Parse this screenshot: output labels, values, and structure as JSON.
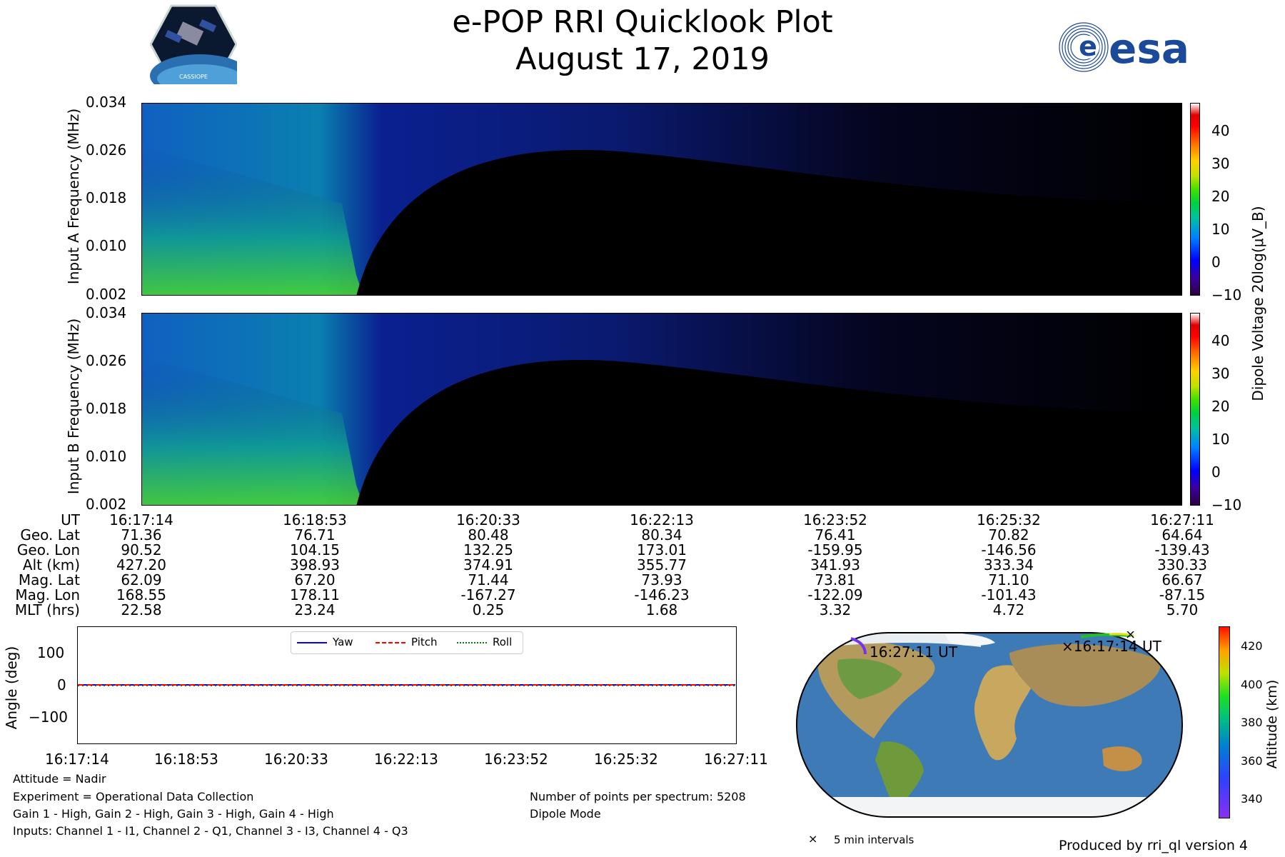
{
  "header": {
    "title_line1": "e-POP RRI Quicklook Plot",
    "title_line2": "August 17, 2019",
    "logo_left_text": "CASSIOPE",
    "logo_right_text": "esa"
  },
  "spectrogram": {
    "panel_a": {
      "ylabel": "Input A Frequency (MHz)"
    },
    "panel_b": {
      "ylabel": "Input B Frequency (MHz)"
    },
    "yticks": [
      "0.034",
      "0.026",
      "0.018",
      "0.010",
      "0.002"
    ],
    "colorbar_ticks": [
      "40",
      "30",
      "20",
      "10",
      "0",
      "−10"
    ],
    "colorbar_label": "Dipole Voltage 20log(μV_B)"
  },
  "ephemeris": {
    "labels": [
      "UT",
      "Geo. Lat",
      "Geo. Lon",
      "Alt (km)",
      "Mag. Lat",
      "Mag. Lon",
      "MLT (hrs)"
    ],
    "columns": [
      [
        "16:17:14",
        "71.36",
        "90.52",
        "427.20",
        "62.09",
        "168.55",
        "22.58"
      ],
      [
        "16:18:53",
        "76.71",
        "104.15",
        "398.93",
        "67.20",
        "178.11",
        "23.24"
      ],
      [
        "16:20:33",
        "80.48",
        "132.25",
        "374.91",
        "71.44",
        "-167.27",
        "0.25"
      ],
      [
        "16:22:13",
        "80.34",
        "173.01",
        "355.77",
        "73.93",
        "-146.23",
        "1.68"
      ],
      [
        "16:23:52",
        "76.41",
        "-159.95",
        "341.93",
        "73.81",
        "-122.09",
        "3.32"
      ],
      [
        "16:25:32",
        "70.82",
        "-146.56",
        "333.34",
        "71.10",
        "-101.43",
        "4.72"
      ],
      [
        "16:27:11",
        "64.64",
        "-139.43",
        "330.33",
        "66.67",
        "-87.15",
        "5.70"
      ]
    ]
  },
  "attitude": {
    "ylabel": "Angle (deg)",
    "yticks": [
      "100",
      "0",
      "−100"
    ],
    "xticks": [
      "16:17:14",
      "16:18:53",
      "16:20:33",
      "16:22:13",
      "16:23:52",
      "16:25:32",
      "16:27:11"
    ],
    "legend": {
      "yaw": "Yaw",
      "pitch": "Pitch",
      "roll": "Roll"
    }
  },
  "info": {
    "attitude_mode": "Attitude = Nadir",
    "experiment": "Experiment = Operational Data Collection",
    "gains": "Gain 1 - High, Gain 2 - High, Gain 3 - High, Gain 4 - High",
    "inputs": "Inputs: Channel 1 - I1, Channel 2 - Q1, Channel 3 - I3, Channel 4 - Q3",
    "points": "Number of points per spectrum: 5208",
    "mode": "Dipole Mode"
  },
  "map": {
    "end_label": "16:27:11 UT",
    "start_label": "×16:17:14 UT",
    "interval_marker": "×",
    "interval_label": "5 min intervals",
    "colorbar_label": "Altitude (km)",
    "colorbar_ticks": [
      "420",
      "400",
      "380",
      "360",
      "340"
    ]
  },
  "footer": {
    "produced_by": "Produced by rri_ql version 4"
  },
  "chart_data": [
    {
      "type": "heatmap",
      "title": "e-POP RRI Quicklook Plot",
      "ylabel": "Input A Frequency (MHz)",
      "ylim": [
        0.002,
        0.034
      ],
      "yticks": [
        0.002,
        0.01,
        0.018,
        0.026,
        0.034
      ],
      "xlabel": "UT",
      "xticks": [
        "16:17:14",
        "16:18:53",
        "16:20:33",
        "16:22:13",
        "16:23:52",
        "16:25:32",
        "16:27:11"
      ],
      "colorbar": {
        "label": "Dipole Voltage 20log(μV_B)",
        "range": [
          -10,
          48
        ],
        "ticks": [
          -10,
          0,
          10,
          20,
          30,
          40
        ]
      }
    },
    {
      "type": "heatmap",
      "ylabel": "Input B Frequency (MHz)",
      "ylim": [
        0.002,
        0.034
      ],
      "yticks": [
        0.002,
        0.01,
        0.018,
        0.026,
        0.034
      ],
      "xticks": [
        "16:17:14",
        "16:18:53",
        "16:20:33",
        "16:22:13",
        "16:23:52",
        "16:25:32",
        "16:27:11"
      ],
      "colorbar": {
        "label": "Dipole Voltage 20log(μV_B)",
        "range": [
          -10,
          48
        ],
        "ticks": [
          -10,
          0,
          10,
          20,
          30,
          40
        ]
      }
    },
    {
      "type": "line",
      "ylabel": "Angle (deg)",
      "ylim": [
        -180,
        180
      ],
      "yticks": [
        -100,
        0,
        100
      ],
      "categories": [
        "16:17:14",
        "16:18:53",
        "16:20:33",
        "16:22:13",
        "16:23:52",
        "16:25:32",
        "16:27:11"
      ],
      "series": [
        {
          "name": "Yaw",
          "values": [
            0,
            0,
            0,
            0,
            0,
            0,
            0
          ]
        },
        {
          "name": "Pitch",
          "values": [
            0,
            0,
            0,
            0,
            0,
            0,
            0
          ]
        },
        {
          "name": "Roll",
          "values": [
            0,
            0,
            0,
            0,
            0,
            0,
            0
          ]
        }
      ],
      "legend": "top-center"
    }
  ]
}
